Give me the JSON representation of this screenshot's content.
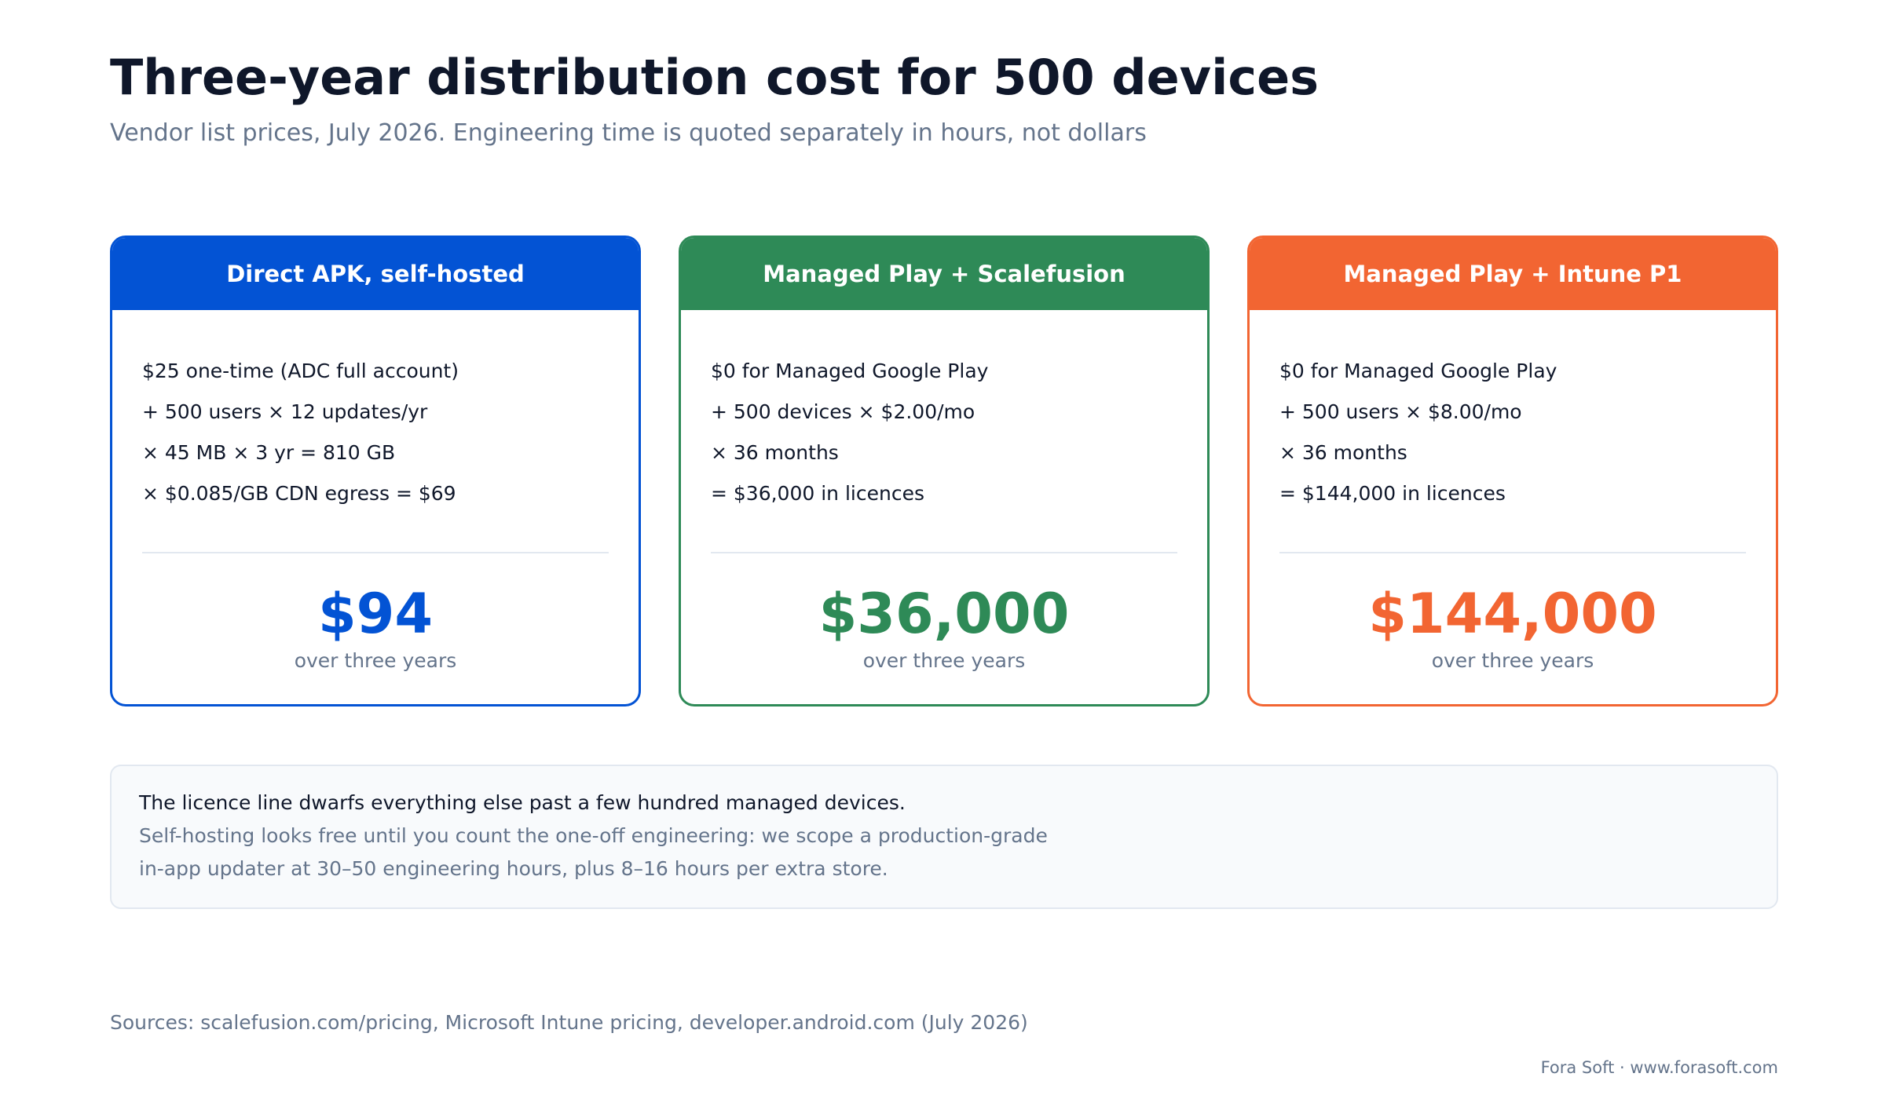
{
  "header": {
    "title": "Three-year distribution cost for 500 devices",
    "subtitle": "Vendor list prices, July 2026. Engineering time is quoted separately in hours, not dollars"
  },
  "cards": [
    {
      "title": "Direct APK, self-hosted",
      "color": "#0353d4",
      "lines": [
        "$25 one-time (ADC full account)",
        "+ 500 users × 12 updates/yr",
        "× 45 MB × 3 yr = 810 GB",
        "× $0.085/GB CDN egress = $69"
      ],
      "total": "$94",
      "total_caption": "over three years"
    },
    {
      "title": "Managed Play + Scalefusion",
      "color": "#2e8a57",
      "lines": [
        "$0 for Managed Google Play",
        "+ 500 devices × $2.00/mo",
        "× 36 months",
        "= $36,000 in licences"
      ],
      "total": "$36,000",
      "total_caption": "over three years"
    },
    {
      "title": "Managed Play + Intune P1",
      "color": "#f26532",
      "lines": [
        "$0 for Managed Google Play",
        "+ 500 users × $8.00/mo",
        "× 36 months",
        "= $144,000 in licences"
      ],
      "total": "$144,000",
      "total_caption": "over three years"
    }
  ],
  "note": {
    "lead": "The licence line dwarfs everything else past a few hundred managed devices.",
    "body_line1": "Self-hosting looks free until you count the one-off engineering: we scope a production-grade",
    "body_line2": "in-app updater at 30–50 engineering hours, plus 8–16 hours per extra store."
  },
  "sources": "Sources: scalefusion.com/pricing, Microsoft Intune pricing, developer.android.com (July 2026)",
  "footer": "Fora Soft · www.forasoft.com"
}
